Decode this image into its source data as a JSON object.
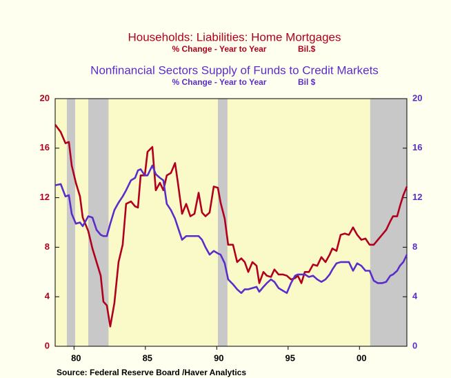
{
  "chart_data": {
    "type": "line",
    "titles": [
      {
        "title": "Households: Liabilities: Home Mortgages",
        "subtitle_left": "% Change - Year to Year",
        "subtitle_right": "Bil.$",
        "color": "#b0001e"
      },
      {
        "title": "Nonfinancial Sectors Supply of Funds to Credit Markets",
        "subtitle_left": "% Change - Year to Year",
        "subtitle_right": "Bil $",
        "color": "#5a2dc8"
      }
    ],
    "source": "Source:  Federal Reserve Board /Haver Analytics",
    "xlim": [
      1979.18,
      2003.82
    ],
    "xticks": [
      {
        "value": 1980.5,
        "label": "80"
      },
      {
        "value": 1985.5,
        "label": "85"
      },
      {
        "value": 1990.5,
        "label": "90"
      },
      {
        "value": 1995.5,
        "label": "95"
      },
      {
        "value": 2000.5,
        "label": "00"
      }
    ],
    "ylim": [
      0,
      20
    ],
    "yticks": [
      0,
      4,
      8,
      12,
      16,
      20
    ],
    "y2lim": [
      0,
      20
    ],
    "y2ticks": [
      0,
      4,
      8,
      12,
      16,
      20
    ],
    "recessions": [
      [
        1980.0,
        1980.58
      ],
      [
        1981.5,
        1982.92
      ],
      [
        1990.58,
        1991.25
      ],
      [
        2001.25,
        2003.82
      ]
    ],
    "recession_color": "#c8c8c8",
    "plot_color": "#fafac8",
    "x": [
      1979.18,
      1979.57,
      1979.9,
      1980.14,
      1980.34,
      1980.63,
      1980.92,
      1981.11,
      1981.5,
      1981.79,
      1982.08,
      1982.37,
      1982.56,
      1982.8,
      1983.04,
      1983.33,
      1983.62,
      1983.91,
      1984.15,
      1984.49,
      1984.78,
      1984.98,
      1985.17,
      1985.46,
      1985.65,
      1985.99,
      1986.23,
      1986.52,
      1986.76,
      1987.0,
      1987.29,
      1987.58,
      1987.78,
      1988.07,
      1988.36,
      1988.65,
      1988.94,
      1989.23,
      1989.47,
      1989.71,
      1990.0,
      1990.29,
      1990.58,
      1990.77,
      1991.06,
      1991.3,
      1991.64,
      1991.93,
      1992.22,
      1992.46,
      1992.71,
      1993.0,
      1993.29,
      1993.48,
      1993.77,
      1994.01,
      1994.3,
      1994.54,
      1994.83,
      1995.12,
      1995.41,
      1995.7,
      1995.99,
      1996.18,
      1996.43,
      1996.67,
      1996.96,
      1997.25,
      1997.54,
      1997.83,
      1998.12,
      1998.41,
      1998.6,
      1998.89,
      1999.18,
      1999.47,
      1999.76,
      2000.05,
      2000.34,
      2000.63,
      2000.92,
      2001.21,
      2001.5,
      2001.79,
      2002.08,
      2002.37,
      2002.66,
      2002.85,
      2003.14,
      2003.33,
      2003.57,
      2003.82
    ],
    "series": [
      {
        "name": "Households: Liabilities: Home Mortgages",
        "color": "#b0001e",
        "values": [
          17.9,
          17.3,
          16.4,
          16.5,
          14.6,
          13.2,
          12.1,
          10.4,
          9.3,
          7.9,
          6.8,
          5.7,
          3.6,
          3.3,
          1.6,
          3.5,
          6.8,
          8.2,
          11.5,
          11.7,
          11.3,
          11.2,
          13.8,
          13.8,
          15.7,
          16.1,
          12.6,
          13.2,
          12.6,
          13.8,
          14.0,
          14.8,
          13.2,
          10.7,
          11.5,
          10.5,
          10.7,
          12.4,
          10.8,
          10.5,
          10.8,
          12.9,
          12.8,
          11.6,
          10.3,
          8.2,
          8.2,
          6.8,
          7.1,
          6.8,
          6.0,
          6.8,
          6.5,
          5.1,
          6.0,
          5.7,
          5.6,
          6.2,
          5.8,
          5.8,
          5.7,
          5.4,
          5.5,
          5.7,
          5.1,
          6.0,
          6.0,
          6.6,
          6.5,
          7.2,
          6.8,
          7.4,
          7.9,
          7.7,
          9.0,
          9.1,
          9.0,
          9.6,
          9.0,
          8.6,
          8.7,
          8.2,
          8.2,
          8.6,
          9.0,
          9.4,
          10.1,
          10.5,
          10.5,
          11.3,
          12.2,
          12.9
        ]
      },
      {
        "name": "Nonfinancial Sectors Supply of Funds to Credit Markets",
        "color": "#5a2dc8",
        "axis": "y2",
        "values": [
          13.0,
          13.1,
          12.1,
          12.2,
          10.7,
          9.9,
          10.0,
          9.7,
          10.5,
          10.4,
          9.4,
          9.0,
          8.9,
          8.9,
          9.9,
          11.0,
          11.6,
          12.1,
          12.6,
          13.4,
          13.6,
          14.2,
          14.3,
          13.8,
          13.8,
          14.6,
          13.9,
          13.6,
          13.4,
          11.5,
          11.0,
          10.3,
          9.6,
          8.6,
          8.9,
          8.9,
          8.9,
          8.9,
          8.6,
          8.0,
          7.4,
          7.7,
          7.5,
          7.4,
          6.7,
          5.4,
          5.0,
          4.6,
          4.3,
          4.6,
          4.6,
          4.7,
          4.8,
          4.4,
          4.8,
          5.1,
          5.4,
          5.2,
          4.7,
          4.5,
          4.3,
          5.1,
          5.7,
          5.8,
          5.8,
          5.8,
          5.6,
          5.7,
          5.4,
          5.2,
          5.4,
          5.8,
          6.2,
          6.7,
          6.8,
          6.8,
          6.8,
          6.1,
          6.7,
          6.5,
          6.1,
          6.1,
          5.3,
          5.1,
          5.1,
          5.2,
          5.7,
          5.8,
          6.1,
          6.5,
          6.8,
          7.4
        ]
      }
    ]
  }
}
